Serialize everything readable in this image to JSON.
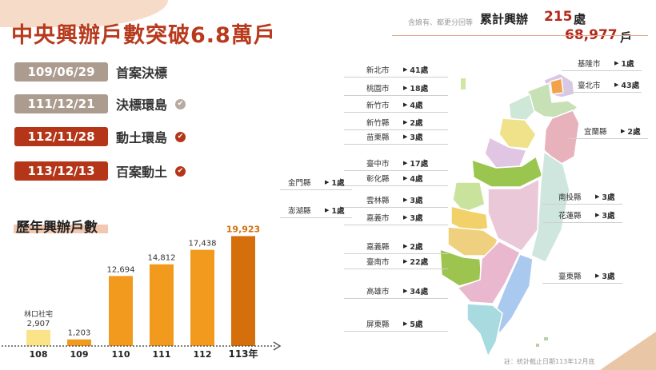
{
  "title": "中央興辦戶數突破6.8萬戶",
  "summary": {
    "note": "含娘有、都更分回等",
    "label": "累計興辦",
    "count": "215",
    "count_unit": "處",
    "households": "68,977",
    "households_unit": "戶"
  },
  "milestones": [
    {
      "date": "109/06/29",
      "text": "首案決標",
      "done": false,
      "style": "grey"
    },
    {
      "date": "111/12/21",
      "text": "決標環島",
      "done": true,
      "style": "grey"
    },
    {
      "date": "112/11/28",
      "text": "動土環島",
      "done": true,
      "style": "red"
    },
    {
      "date": "113/12/13",
      "text": "百案動土",
      "done": true,
      "style": "red"
    }
  ],
  "colors": {
    "title": "#b73a1d",
    "accent": "#b5291c",
    "bar_orange": "#f29a1e",
    "bar_first": "#fbe38a",
    "bar_last": "#d46f0c",
    "check_grey": "#b8aaa0",
    "check_red": "#b43517"
  },
  "chart_data": {
    "type": "bar",
    "title": "歷年興辦戶數",
    "categories": [
      "108",
      "109",
      "110",
      "111",
      "112",
      "113年"
    ],
    "values": [
      2907,
      1203,
      12694,
      14812,
      17438,
      19923
    ],
    "value_labels": [
      "2,907",
      "1,203",
      "12,694",
      "14,812",
      "17,438",
      "19,923"
    ],
    "annotations": [
      {
        "category": "108",
        "text": "林口社宅"
      }
    ],
    "ylim": [
      0,
      21000
    ],
    "grid": false
  },
  "map_labels": {
    "left": [
      {
        "name": "新北市",
        "value": "41處"
      },
      {
        "name": "桃園市",
        "value": "18處"
      },
      {
        "name": "新竹市",
        "value": "4處"
      },
      {
        "name": "新竹縣",
        "value": "2處"
      },
      {
        "name": "苗栗縣",
        "value": "3處"
      },
      {
        "name": "臺中市",
        "value": "17處"
      },
      {
        "name": "彰化縣",
        "value": "4處"
      },
      {
        "name": "雲林縣",
        "value": "3處"
      },
      {
        "name": "嘉義市",
        "value": "3處"
      },
      {
        "name": "嘉義縣",
        "value": "2處"
      },
      {
        "name": "臺南市",
        "value": "22處"
      },
      {
        "name": "高雄市",
        "value": "34處"
      },
      {
        "name": "屏東縣",
        "value": "5處"
      }
    ],
    "islands": [
      {
        "name": "金門縣",
        "value": "1處"
      },
      {
        "name": "澎湖縣",
        "value": "1處"
      }
    ],
    "right": [
      {
        "name": "基隆市",
        "value": "1處"
      },
      {
        "name": "臺北市",
        "value": "43處"
      },
      {
        "name": "宜蘭縣",
        "value": "2處"
      },
      {
        "name": "南投縣",
        "value": "3處"
      },
      {
        "name": "花蓮縣",
        "value": "3處"
      },
      {
        "name": "臺東縣",
        "value": "3處"
      }
    ]
  },
  "footnote": "註：統計截止日期113年12月底"
}
